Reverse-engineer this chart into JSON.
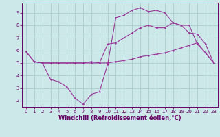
{
  "xlabel": "Windchill (Refroidissement éolien,°C)",
  "bg_color": "#cce8e8",
  "grid_color": "#aacccc",
  "line_color": "#993399",
  "xlim": [
    -0.5,
    23.5
  ],
  "ylim": [
    1.5,
    9.8
  ],
  "xticks": [
    0,
    1,
    2,
    3,
    4,
    5,
    6,
    7,
    8,
    9,
    10,
    11,
    12,
    13,
    14,
    15,
    16,
    17,
    18,
    19,
    20,
    21,
    22,
    23
  ],
  "yticks": [
    2,
    3,
    4,
    5,
    6,
    7,
    8,
    9
  ],
  "line1_x": [
    0,
    1,
    2,
    3,
    4,
    5,
    6,
    7,
    8,
    9,
    10,
    11,
    12,
    13,
    14,
    15,
    16,
    17,
    18,
    19,
    20,
    21,
    22,
    23
  ],
  "line1_y": [
    5.9,
    5.1,
    5.0,
    5.0,
    5.0,
    5.0,
    5.0,
    5.0,
    5.1,
    5.0,
    6.5,
    6.6,
    7.0,
    7.4,
    7.8,
    8.0,
    7.8,
    7.8,
    8.2,
    8.0,
    7.4,
    7.3,
    6.5,
    5.0
  ],
  "line2_x": [
    0,
    1,
    2,
    3,
    4,
    5,
    6,
    7,
    8,
    9,
    10,
    11,
    12,
    13,
    14,
    15,
    16,
    17,
    18,
    19,
    20,
    21,
    22,
    23
  ],
  "line2_y": [
    5.9,
    5.1,
    5.0,
    3.7,
    3.5,
    3.1,
    2.2,
    1.7,
    2.5,
    2.7,
    4.9,
    8.6,
    8.8,
    9.2,
    9.4,
    9.1,
    9.2,
    9.0,
    8.2,
    8.0,
    8.0,
    6.5,
    5.8,
    5.0
  ],
  "line3_x": [
    0,
    1,
    2,
    3,
    4,
    5,
    6,
    7,
    8,
    9,
    10,
    11,
    12,
    13,
    14,
    15,
    16,
    17,
    18,
    19,
    20,
    21,
    22,
    23
  ],
  "line3_y": [
    5.9,
    5.1,
    5.0,
    5.0,
    5.0,
    5.0,
    5.0,
    5.0,
    5.0,
    5.0,
    5.0,
    5.1,
    5.2,
    5.3,
    5.5,
    5.6,
    5.7,
    5.8,
    6.0,
    6.2,
    6.4,
    6.6,
    5.8,
    5.0
  ],
  "tick_fontsize": 5.0,
  "label_fontsize": 6.0
}
